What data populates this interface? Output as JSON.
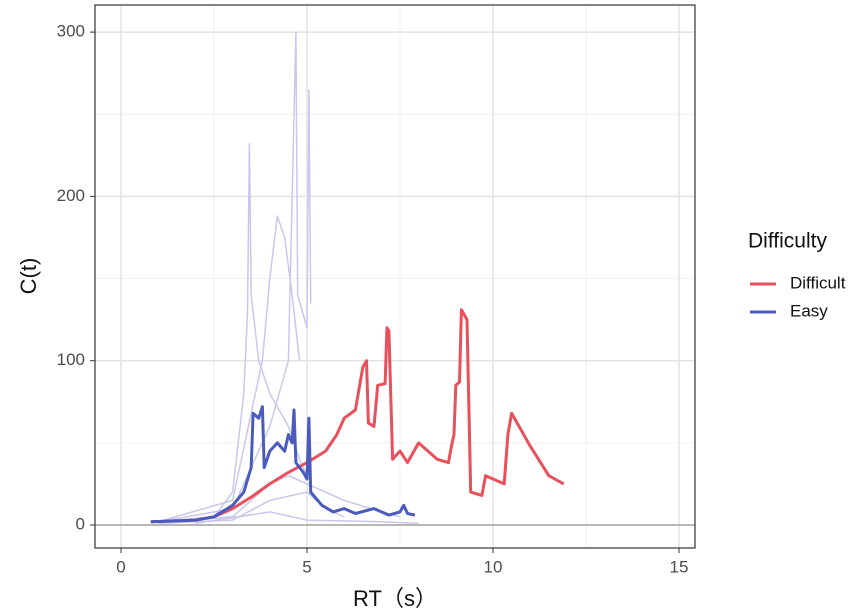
{
  "chart_data": {
    "type": "line",
    "x_label": "RT（s）",
    "y_label": "C(t)",
    "legend_title": "Difficulty",
    "legend_position": "right",
    "grid": true,
    "xlim": [
      -0.7,
      15.43
    ],
    "ylim": [
      -14,
      316.5
    ],
    "xticks": [
      0,
      5,
      10,
      15
    ],
    "yticks": [
      0,
      100,
      200,
      300
    ],
    "x_minor_ticks": [
      2.5,
      7.5,
      12.5
    ],
    "y_minor_ticks": [
      50,
      150,
      250
    ],
    "hline": 0,
    "hline_color": "#a6a6a6",
    "series": [
      {
        "name": "Difficult",
        "color": "#e8505b",
        "x": [
          0.8,
          2,
          2.5,
          3,
          3.5,
          4,
          4.5,
          5,
          5.5,
          5.8,
          6.0,
          6.3,
          6.5,
          6.6,
          6.65,
          6.8,
          6.9,
          7.1,
          7.15,
          7.2,
          7.3,
          7.5,
          7.7,
          8.0,
          8.5,
          8.8,
          8.9,
          8.95,
          9.0,
          9.1,
          9.15,
          9.3,
          9.4,
          9.7,
          9.8,
          10.3,
          10.4,
          10.5,
          11.0,
          11.5,
          11.9
        ],
        "values": [
          2,
          3,
          5,
          10,
          17,
          25,
          32,
          38,
          45,
          55,
          65,
          70,
          96,
          100,
          62,
          60,
          85,
          86,
          120,
          118,
          40,
          45,
          38,
          50,
          40,
          38,
          50,
          55,
          85,
          87,
          131,
          125,
          20,
          18,
          30,
          25,
          55,
          68,
          48,
          30,
          25
        ]
      },
      {
        "name": "Easy",
        "color": "#4a5bbd",
        "x": [
          0.8,
          1.5,
          2,
          2.5,
          3,
          3.3,
          3.5,
          3.55,
          3.7,
          3.8,
          3.85,
          4.0,
          4.2,
          4.4,
          4.5,
          4.6,
          4.65,
          4.7,
          4.9,
          5.0,
          5.05,
          5.1,
          5.4,
          5.7,
          6,
          6.3,
          6.8,
          7.2,
          7.5,
          7.6,
          7.7,
          7.9
        ],
        "values": [
          2,
          2.5,
          3,
          5,
          12,
          20,
          35,
          68,
          65,
          72,
          35,
          45,
          50,
          45,
          55,
          50,
          70,
          38,
          32,
          28,
          65,
          20,
          12,
          8,
          10,
          7,
          10,
          6,
          8,
          12,
          7,
          6
        ]
      }
    ],
    "individual_color": "#c8c8ec",
    "individual_series": [
      {
        "x": [
          1,
          2.5,
          3,
          3.3,
          3.4,
          3.45,
          3.5,
          3.7,
          4,
          4.5,
          4.8,
          5
        ],
        "values": [
          2,
          5,
          20,
          80,
          130,
          232,
          140,
          100,
          80,
          60,
          40,
          30
        ]
      },
      {
        "x": [
          1,
          3,
          3.8,
          4,
          4.2,
          4.4,
          4.6,
          4.8
        ],
        "values": [
          2,
          15,
          100,
          150,
          188,
          175,
          140,
          100
        ]
      },
      {
        "x": [
          1,
          3,
          4,
          4.5,
          4.7,
          4.75,
          5,
          5.05,
          5.1
        ],
        "values": [
          2,
          10,
          60,
          100,
          300,
          140,
          120,
          265,
          135
        ]
      },
      {
        "x": [
          1,
          3,
          4,
          4.5,
          5,
          6,
          7,
          7.5
        ],
        "values": [
          1,
          5,
          25,
          30,
          25,
          15,
          8,
          5
        ]
      },
      {
        "x": [
          1,
          3,
          4,
          5,
          5.5,
          6
        ],
        "values": [
          1,
          3,
          15,
          20,
          10,
          5
        ]
      },
      {
        "x": [
          2,
          4,
          5,
          7,
          8
        ],
        "values": [
          1,
          8,
          3,
          2,
          1
        ]
      }
    ]
  }
}
